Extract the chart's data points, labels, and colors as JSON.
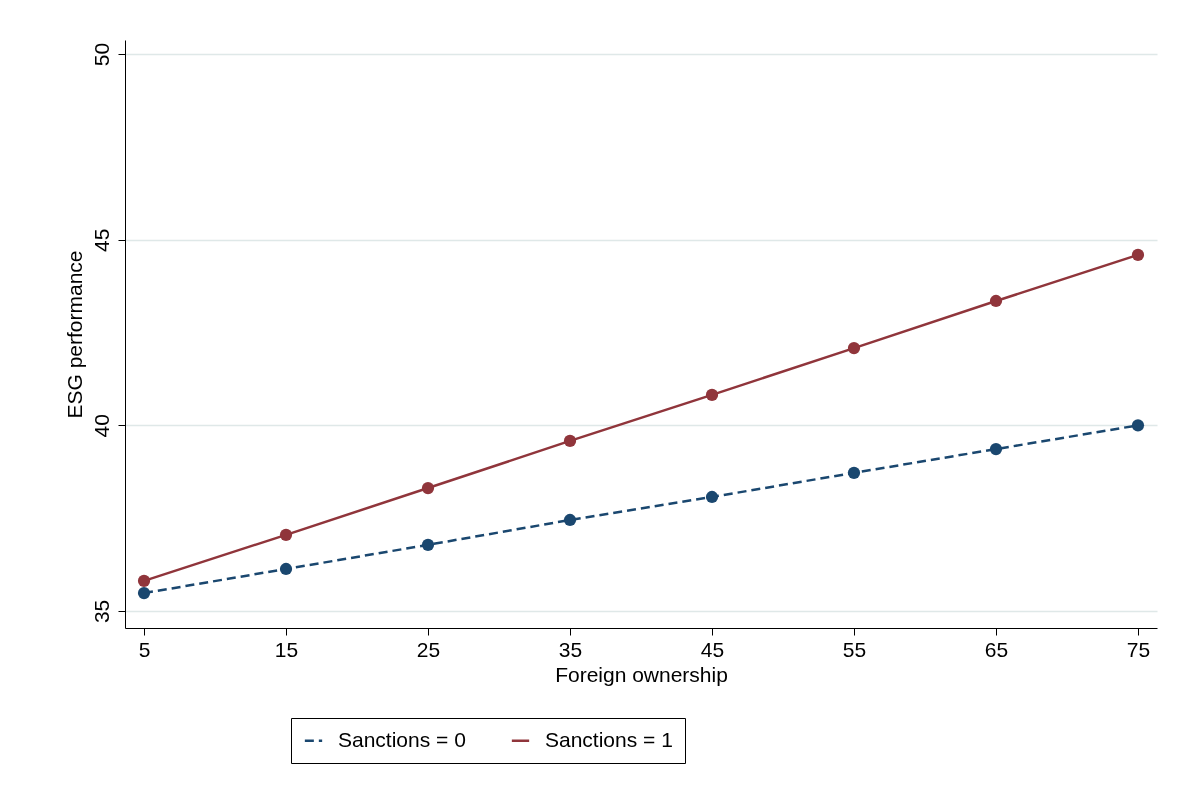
{
  "chart_data": {
    "type": "line",
    "xlabel": "Foreign ownership",
    "ylabel": "ESG performance",
    "x": [
      5,
      15,
      25,
      35,
      45,
      55,
      65,
      75
    ],
    "series": [
      {
        "name": "Sanctions = 0",
        "color": "#1a476f",
        "line_style": "dashed",
        "values": [
          35.48,
          36.13,
          36.78,
          37.45,
          38.07,
          38.72,
          39.36,
          40.0
        ]
      },
      {
        "name": "Sanctions = 1",
        "color": "#90353b",
        "line_style": "solid",
        "values": [
          35.81,
          37.05,
          38.31,
          39.58,
          40.82,
          42.08,
          43.35,
          44.59
        ]
      }
    ],
    "xlim": [
      3.66,
      76.34
    ],
    "xticks": [
      5,
      15,
      25,
      35,
      45,
      55,
      65,
      75
    ],
    "ylim": [
      34.54,
      50.38
    ],
    "yticks": [
      35,
      40,
      45,
      50
    ],
    "grid": "y",
    "legend": "bottom",
    "marker": "circle"
  }
}
